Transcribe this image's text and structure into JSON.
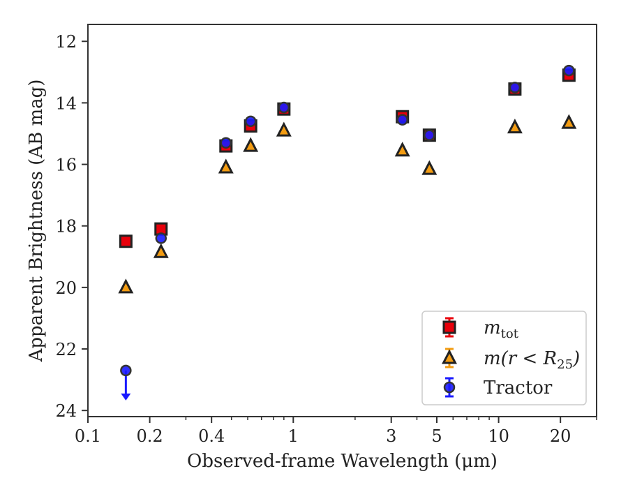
{
  "chart_data": {
    "type": "scatter",
    "xlabel": "Observed-frame Wavelength (μm)",
    "ylabel": "Apparent Brightness (AB mag)",
    "x_scale": "log",
    "xlim": [
      0.1,
      30
    ],
    "ylim": [
      24.2,
      11.45
    ],
    "y_inverted": true,
    "grid": false,
    "legend_position": "lower-right",
    "x_ticks": [
      {
        "value": 0.1,
        "label": "0.1"
      },
      {
        "value": 0.2,
        "label": "0.2"
      },
      {
        "value": 0.4,
        "label": "0.4"
      },
      {
        "value": 1,
        "label": "1"
      },
      {
        "value": 3,
        "label": "3"
      },
      {
        "value": 5,
        "label": "5"
      },
      {
        "value": 10,
        "label": "10"
      },
      {
        "value": 20,
        "label": "20"
      }
    ],
    "x_minor_ticks": [
      0.3,
      0.5,
      0.6,
      0.7,
      0.8,
      0.9,
      2,
      4,
      6,
      7,
      8,
      9,
      30
    ],
    "y_ticks": [
      {
        "value": 12,
        "label": "12"
      },
      {
        "value": 14,
        "label": "14"
      },
      {
        "value": 16,
        "label": "16"
      },
      {
        "value": 18,
        "label": "18"
      },
      {
        "value": 20,
        "label": "20"
      },
      {
        "value": 22,
        "label": "22"
      },
      {
        "value": 24,
        "label": "24"
      }
    ],
    "series": [
      {
        "name": "m_tot",
        "label_main": "m",
        "label_sub": "tot",
        "marker": "square",
        "color": "#e8000b",
        "edge": "#222222",
        "x": [
          0.153,
          0.227,
          0.47,
          0.62,
          0.9,
          3.4,
          4.6,
          12,
          22
        ],
        "y": [
          18.5,
          18.1,
          15.4,
          14.75,
          14.2,
          14.45,
          15.05,
          13.55,
          13.1
        ]
      },
      {
        "name": "m(r < R25)",
        "label_main": "m(r < R",
        "label_sub": "25",
        "label_tail": ")",
        "marker": "triangle",
        "color": "#f39c12",
        "edge": "#222222",
        "x": [
          0.153,
          0.227,
          0.47,
          0.62,
          0.9,
          3.4,
          4.6,
          12,
          22
        ],
        "y": [
          20,
          18.85,
          16.1,
          15.4,
          14.9,
          15.55,
          16.15,
          14.8,
          14.65
        ]
      },
      {
        "name": "Tractor",
        "label_main": "Tractor",
        "marker": "circle",
        "color": "#1a1aff",
        "edge": "#333333",
        "x": [
          0.153,
          0.227,
          0.47,
          0.62,
          0.9,
          3.4,
          4.6,
          12,
          22
        ],
        "y": [
          22.7,
          18.4,
          15.3,
          14.6,
          14.15,
          14.55,
          15.05,
          13.5,
          12.95
        ],
        "upper_limit": [
          true,
          false,
          false,
          false,
          false,
          false,
          false,
          false,
          false
        ]
      }
    ]
  }
}
